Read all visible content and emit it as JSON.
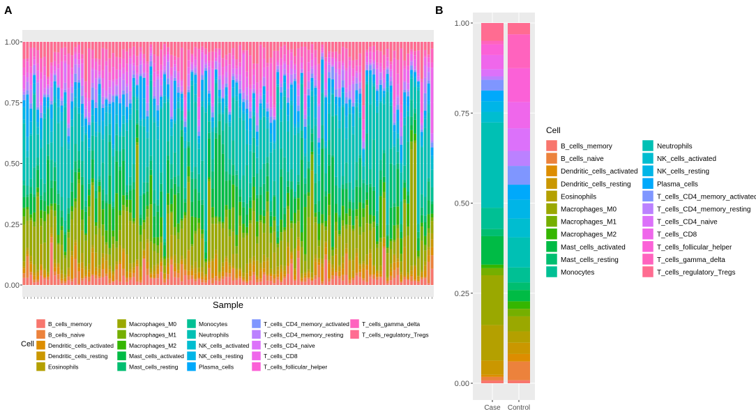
{
  "figure": {
    "panel_a_label": "A",
    "panel_b_label": "B",
    "legend_title": "Cell"
  },
  "cell_types": [
    {
      "name": "B_cells_memory",
      "color": "#F8766D"
    },
    {
      "name": "B_cells_naive",
      "color": "#EC823C"
    },
    {
      "name": "Dendritic_cells_activated",
      "color": "#DD8D00"
    },
    {
      "name": "Dendritic_cells_resting",
      "color": "#CA9700"
    },
    {
      "name": "Eosinophils",
      "color": "#B4A000"
    },
    {
      "name": "Macrophages_M0",
      "color": "#9AA800"
    },
    {
      "name": "Macrophages_M1",
      "color": "#75AF00"
    },
    {
      "name": "Macrophages_M2",
      "color": "#35B600"
    },
    {
      "name": "Mast_cells_activated",
      "color": "#00BB45"
    },
    {
      "name": "Mast_cells_resting",
      "color": "#00BE70"
    },
    {
      "name": "Monocytes",
      "color": "#00C094"
    },
    {
      "name": "Neutrophils",
      "color": "#00C0B4"
    },
    {
      "name": "NK_cells_activated",
      "color": "#00BDD0"
    },
    {
      "name": "NK_cells_resting",
      "color": "#00B5E7"
    },
    {
      "name": "Plasma_cells",
      "color": "#00A9FB"
    },
    {
      "name": "T_cells_CD4_memory_activated",
      "color": "#7F96FF"
    },
    {
      "name": "T_cells_CD4_memory_resting",
      "color": "#BB81FF"
    },
    {
      "name": "T_cells_CD4_naive",
      "color": "#DC71FA"
    },
    {
      "name": "T_cells_CD8",
      "color": "#EF67EB"
    },
    {
      "name": "T_cells_follicular_helper",
      "color": "#FB61D7"
    },
    {
      "name": "T_cells_gamma_delta",
      "color": "#FF63BE"
    },
    {
      "name": "T_cells_regulatory_Tregs",
      "color": "#FF6C91"
    }
  ],
  "chart_data": [
    {
      "panel": "A",
      "type": "bar",
      "stacked": true,
      "title": "",
      "xlabel": "Sample",
      "ylabel": "",
      "ylim": [
        0,
        1
      ],
      "yticks": [
        "0.00",
        "0.25",
        "0.50",
        "0.75",
        "1.00"
      ],
      "n_samples": 120,
      "legend_position": "bottom",
      "note": "Each of 120 stacked bars shows the per-sample fraction of 22 immune cell types (CIBERSORT); bars sum to 1. Individual per-sample fractions are not labeled and are approximated.",
      "typical_composition": {
        "B_cells_memory": 0.03,
        "B_cells_naive": 0.02,
        "Dendritic_cells_activated": 0.02,
        "Dendritic_cells_resting": 0.02,
        "Eosinophils": 0.02,
        "Macrophages_M0": 0.14,
        "Macrophages_M1": 0.03,
        "Macrophages_M2": 0.04,
        "Mast_cells_activated": 0.1,
        "Mast_cells_resting": 0.04,
        "Monocytes": 0.06,
        "Neutrophils": 0.22,
        "NK_cells_activated": 0.03,
        "NK_cells_resting": 0.04,
        "Plasma_cells": 0.04,
        "T_cells_CD4_memory_activated": 0.02,
        "T_cells_CD4_memory_resting": 0.03,
        "T_cells_CD4_naive": 0.02,
        "T_cells_CD8": 0.04,
        "T_cells_follicular_helper": 0.03,
        "T_cells_gamma_delta": 0.05,
        "T_cells_regulatory_Tregs": 0.06
      }
    },
    {
      "panel": "B",
      "type": "bar",
      "stacked": true,
      "title": "",
      "xlabel": "",
      "ylabel": "",
      "categories": [
        "Case",
        "Control"
      ],
      "ylim": [
        0,
        1
      ],
      "yticks": [
        "0.00",
        "0.25",
        "0.50",
        "0.75",
        "1.00"
      ],
      "legend_position": "right",
      "series": [
        {
          "name": "B_cells_memory",
          "values": [
            0.008,
            0.008
          ]
        },
        {
          "name": "B_cells_naive",
          "values": [
            0.01,
            0.05
          ]
        },
        {
          "name": "Dendritic_cells_activated",
          "values": [
            0.006,
            0.02
          ]
        },
        {
          "name": "Dendritic_cells_resting",
          "values": [
            0.04,
            0.03
          ]
        },
        {
          "name": "Eosinophils",
          "values": [
            0.1,
            0.03
          ]
        },
        {
          "name": "Macrophages_M0",
          "values": [
            0.14,
            0.04
          ]
        },
        {
          "name": "Macrophages_M1",
          "values": [
            0.02,
            0.02
          ]
        },
        {
          "name": "Macrophages_M2",
          "values": [
            0.01,
            0.02
          ]
        },
        {
          "name": "Mast_cells_activated",
          "values": [
            0.08,
            0.03
          ]
        },
        {
          "name": "Mast_cells_resting",
          "values": [
            0.02,
            0.02
          ]
        },
        {
          "name": "Monocytes",
          "values": [
            0.06,
            0.04
          ]
        },
        {
          "name": "Neutrophils",
          "values": [
            0.24,
            0.08
          ]
        },
        {
          "name": "NK_cells_activated",
          "values": [
            0.03,
            0.05
          ]
        },
        {
          "name": "NK_cells_resting",
          "values": [
            0.03,
            0.05
          ]
        },
        {
          "name": "Plasma_cells",
          "values": [
            0.03,
            0.04
          ]
        },
        {
          "name": "T_cells_CD4_memory_activated",
          "values": [
            0.03,
            0.05
          ]
        },
        {
          "name": "T_cells_CD4_memory_resting",
          "values": [
            0.01,
            0.04
          ]
        },
        {
          "name": "T_cells_CD4_naive",
          "values": [
            0.02,
            0.06
          ]
        },
        {
          "name": "T_cells_CD8",
          "values": [
            0.04,
            0.07
          ]
        },
        {
          "name": "T_cells_follicular_helper",
          "values": [
            0.03,
            0.09
          ]
        },
        {
          "name": "T_cells_gamma_delta",
          "values": [
            0.01,
            0.09
          ]
        },
        {
          "name": "T_cells_regulatory_Tregs",
          "values": [
            0.05,
            0.03
          ]
        }
      ]
    }
  ]
}
